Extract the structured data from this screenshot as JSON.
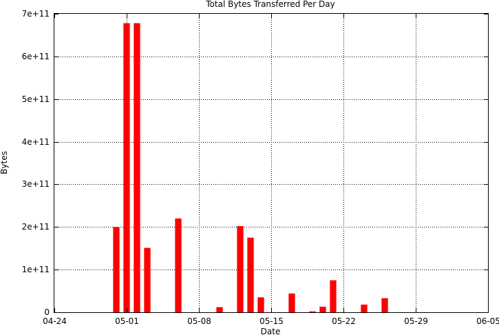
{
  "chart_data": {
    "type": "bar",
    "title": "Total Bytes Transferred Per Day",
    "xlabel": "Date",
    "ylabel": "Bytes",
    "x_axis": {
      "type": "date",
      "start": "2011-04-24",
      "end": "2011-06-05",
      "tick_labels": [
        "04-24",
        "05-01",
        "05-08",
        "05-15",
        "05-22",
        "05-29",
        "06-05"
      ]
    },
    "y_axis": {
      "min": 0,
      "max": 700000000000,
      "tick_values": [
        0,
        100000000000,
        200000000000,
        300000000000,
        400000000000,
        500000000000,
        600000000000,
        700000000000
      ],
      "tick_labels": [
        "0",
        "1e+11",
        "2e+11",
        "3e+11",
        "4e+11",
        "5e+11",
        "6e+11",
        "7e+11"
      ]
    },
    "grid": true,
    "bar_color": "#ff0000",
    "points": [
      {
        "date": "2011-04-30",
        "value": 200000000000
      },
      {
        "date": "2011-05-01",
        "value": 678000000000
      },
      {
        "date": "2011-05-02",
        "value": 678000000000
      },
      {
        "date": "2011-05-03",
        "value": 151000000000
      },
      {
        "date": "2011-05-06",
        "value": 220000000000
      },
      {
        "date": "2011-05-10",
        "value": 12000000000
      },
      {
        "date": "2011-05-12",
        "value": 202000000000
      },
      {
        "date": "2011-05-13",
        "value": 175000000000
      },
      {
        "date": "2011-05-14",
        "value": 35000000000
      },
      {
        "date": "2011-05-17",
        "value": 44000000000
      },
      {
        "date": "2011-05-19",
        "value": 2000000000
      },
      {
        "date": "2011-05-20",
        "value": 13000000000
      },
      {
        "date": "2011-05-21",
        "value": 75000000000
      },
      {
        "date": "2011-05-24",
        "value": 18000000000
      },
      {
        "date": "2011-05-26",
        "value": 33000000000
      }
    ]
  }
}
